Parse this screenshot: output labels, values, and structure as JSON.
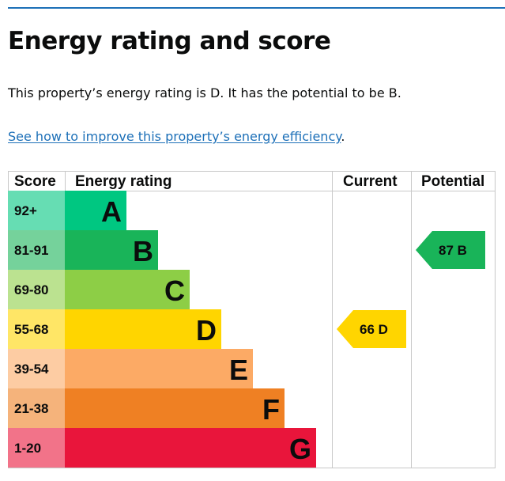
{
  "page": {
    "title": "Energy rating and score",
    "summary": "This property’s energy rating is D. It has the potential to be B.",
    "improve_link": "See how to improve this property’s energy efficiency",
    "improve_suffix": "."
  },
  "chart_data": {
    "type": "bar",
    "headers": {
      "score": "Score",
      "rating": "Energy rating",
      "current": "Current",
      "potential": "Potential"
    },
    "bands": [
      {
        "letter": "A",
        "score": "92+",
        "bar_color": "#00c781",
        "score_color": "#66ddb3"
      },
      {
        "letter": "B",
        "score": "81-91",
        "bar_color": "#19b459",
        "score_color": "#75d29b"
      },
      {
        "letter": "C",
        "score": "69-80",
        "bar_color": "#8dce46",
        "score_color": "#bbe290"
      },
      {
        "letter": "D",
        "score": "55-68",
        "bar_color": "#ffd500",
        "score_color": "#ffe666"
      },
      {
        "letter": "E",
        "score": "39-54",
        "bar_color": "#fcaa65",
        "score_color": "#fdcca3"
      },
      {
        "letter": "F",
        "score": "21-38",
        "bar_color": "#ef8023",
        "score_color": "#f5b37b"
      },
      {
        "letter": "G",
        "score": "1-20",
        "bar_color": "#e9153b",
        "score_color": "#f27389"
      }
    ],
    "current": {
      "score": 66,
      "letter": "D",
      "label": "66  D",
      "color": "#ffd500"
    },
    "potential": {
      "score": 87,
      "letter": "B",
      "label": "87  B",
      "color": "#19b459"
    }
  }
}
